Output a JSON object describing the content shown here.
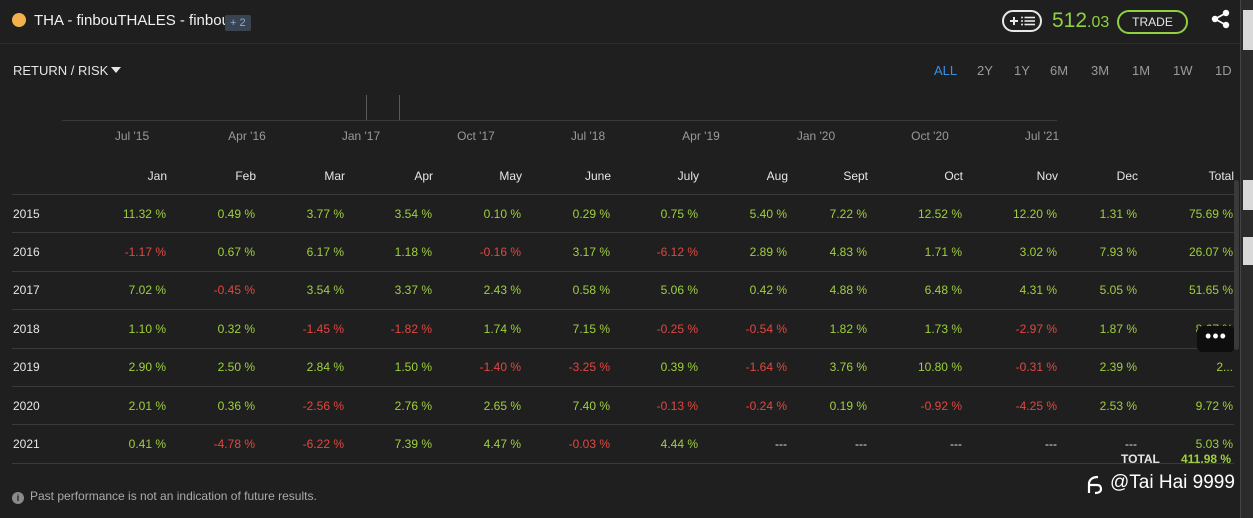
{
  "header": {
    "title": "THA - finbouTHALES - finbou",
    "badge": "+ 2",
    "price_int": "512",
    "price_dec": ".03",
    "trade_label": "TRADE",
    "colors": {
      "accent_green": "#8fd13f",
      "status_dot": "#f2b14c",
      "active_blue": "#3b8fe0"
    }
  },
  "toolbar": {
    "view_label": "RETURN / RISK",
    "timeframes": [
      {
        "label": "ALL",
        "active": true
      },
      {
        "label": "2Y",
        "active": false
      },
      {
        "label": "1Y",
        "active": false
      },
      {
        "label": "6M",
        "active": false
      },
      {
        "label": "3M",
        "active": false
      },
      {
        "label": "1M",
        "active": false
      },
      {
        "label": "1W",
        "active": false
      },
      {
        "label": "1D",
        "active": false
      }
    ]
  },
  "timeline": {
    "ticks": [
      "Jul '15",
      "Apr '16",
      "Jan '17",
      "Oct '17",
      "Jul '18",
      "Apr '19",
      "Jan '20",
      "Oct '20",
      "Jul '21"
    ]
  },
  "table": {
    "headers": [
      "",
      "Jan",
      "Feb",
      "Mar",
      "Apr",
      "May",
      "June",
      "July",
      "Aug",
      "Sept",
      "Oct",
      "Nov",
      "Dec",
      "Total"
    ],
    "rows": [
      {
        "year": "2015",
        "cells": [
          "11.32 %",
          "0.49 %",
          "3.77 %",
          "3.54 %",
          "0.10 %",
          "0.29 %",
          "0.75 %",
          "5.40 %",
          "7.22 %",
          "12.52 %",
          "12.20 %",
          "1.31 %",
          "75.69 %"
        ]
      },
      {
        "year": "2016",
        "cells": [
          "-1.17 %",
          "0.67 %",
          "6.17 %",
          "1.18 %",
          "-0.16 %",
          "3.17 %",
          "-6.12 %",
          "2.89 %",
          "4.83 %",
          "1.71 %",
          "3.02 %",
          "7.93 %",
          "26.07 %"
        ]
      },
      {
        "year": "2017",
        "cells": [
          "7.02 %",
          "-0.45 %",
          "3.54 %",
          "3.37 %",
          "2.43 %",
          "0.58 %",
          "5.06 %",
          "0.42 %",
          "4.88 %",
          "6.48 %",
          "4.31 %",
          "5.05 %",
          "51.65 %"
        ]
      },
      {
        "year": "2018",
        "cells": [
          "1.10 %",
          "0.32 %",
          "-1.45 %",
          "-1.82 %",
          "1.74 %",
          "7.15 %",
          "-0.25 %",
          "-0.54 %",
          "1.82 %",
          "1.73 %",
          "-2.97 %",
          "1.87 %",
          "8.67 %"
        ]
      },
      {
        "year": "2019",
        "cells": [
          "2.90 %",
          "2.50 %",
          "2.84 %",
          "1.50 %",
          "-1.40 %",
          "-3.25 %",
          "0.39 %",
          "-1.64 %",
          "3.76 %",
          "10.80 %",
          "-0.31 %",
          "2.39 %",
          "2..."
        ]
      },
      {
        "year": "2020",
        "cells": [
          "2.01 %",
          "0.36 %",
          "-2.56 %",
          "2.76 %",
          "2.65 %",
          "7.40 %",
          "-0.13 %",
          "-0.24 %",
          "0.19 %",
          "-0.92 %",
          "-4.25 %",
          "2.53 %",
          "9.72 %"
        ]
      },
      {
        "year": "2021",
        "cells": [
          "0.41 %",
          "-4.78 %",
          "-6.22 %",
          "7.39 %",
          "4.47 %",
          "-0.03 %",
          "4.44 %",
          "---",
          "---",
          "---",
          "---",
          "---",
          "5.03 %"
        ]
      }
    ],
    "grand_total_label": "TOTAL",
    "grand_total_value": "411.98 %"
  },
  "footer": {
    "disclaimer": "Past performance is not an indication of future results.",
    "watermark": "@Tai Hai 9999",
    "more_label": "•••"
  }
}
